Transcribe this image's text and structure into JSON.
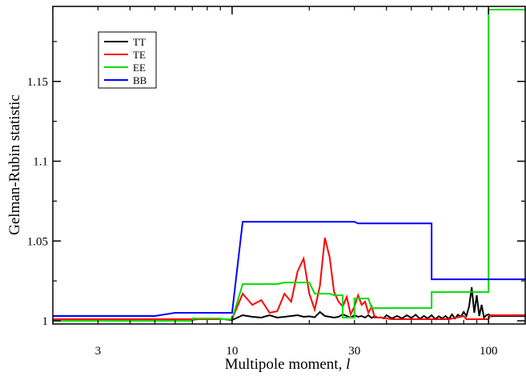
{
  "chart_data": {
    "type": "line",
    "title": "",
    "xlabel": "Multipole moment, ",
    "xlabel_var": "l",
    "ylabel": "Gelman-Rubin statistic",
    "xscale": "log",
    "xlim": [
      2,
      140
    ],
    "ylim": [
      0.998,
      1.197
    ],
    "x_ticks": [
      3,
      10,
      30,
      100
    ],
    "x_tick_labels": [
      "3",
      "10",
      "30",
      "100"
    ],
    "y_ticks": [
      1,
      1.05,
      1.1,
      1.15
    ],
    "y_tick_labels": [
      "1",
      "1.05",
      "1.1",
      "1.15"
    ],
    "grid": false,
    "legend_position": "top-left",
    "series": [
      {
        "name": "TT",
        "color": "#000000",
        "style": "line",
        "points": [
          [
            2,
            1.0005
          ],
          [
            5,
            1.0005
          ],
          [
            7,
            1.0007
          ],
          [
            8,
            1.0015
          ],
          [
            9,
            1.0012
          ],
          [
            10,
            1.0005
          ],
          [
            11,
            1.0035
          ],
          [
            12,
            1.0025
          ],
          [
            13,
            1.002
          ],
          [
            14,
            1.0035
          ],
          [
            15,
            1.002
          ],
          [
            16,
            1.0025
          ],
          [
            17,
            1.003
          ],
          [
            18,
            1.0035
          ],
          [
            19,
            1.0025
          ],
          [
            20,
            1.0028
          ],
          [
            21,
            1.0022
          ],
          [
            22,
            1.0055
          ],
          [
            23,
            1.003
          ],
          [
            24,
            1.0025
          ],
          [
            25,
            1.002
          ],
          [
            26,
            1.0025
          ],
          [
            27,
            1.004
          ],
          [
            28,
            1.003
          ],
          [
            29,
            1.002
          ],
          [
            30,
            1.0035
          ],
          [
            31,
            1.0025
          ],
          [
            32,
            1.003
          ],
          [
            33,
            1.002
          ],
          [
            34,
            1.0035
          ],
          [
            35,
            1.0018
          ],
          [
            36,
            1.0028
          ],
          [
            37,
            1.002
          ],
          [
            38,
            1.0022
          ],
          [
            39,
            1.0015
          ],
          [
            40,
            1.0035
          ],
          [
            42,
            1.0015
          ],
          [
            44,
            1.003
          ],
          [
            46,
            1.0015
          ],
          [
            48,
            1.0035
          ],
          [
            50,
            1.0018
          ],
          [
            52,
            1.0038
          ],
          [
            54,
            1.0012
          ],
          [
            56,
            1.003
          ],
          [
            58,
            1.0015
          ],
          [
            60,
            1.0035
          ],
          [
            62,
            1.001
          ],
          [
            64,
            1.0028
          ],
          [
            66,
            1.0015
          ],
          [
            68,
            1.003
          ],
          [
            70,
            1.001
          ],
          [
            72,
            1.004
          ],
          [
            74,
            1.0015
          ],
          [
            76,
            1.0038
          ],
          [
            78,
            1.0025
          ],
          [
            80,
            1.0055
          ],
          [
            82,
            1.003
          ],
          [
            84,
            1.009
          ],
          [
            86,
            1.021
          ],
          [
            88,
            1.005
          ],
          [
            90,
            1.016
          ],
          [
            92,
            1.003
          ],
          [
            94,
            1.01
          ],
          [
            96,
            1.002
          ],
          [
            98,
            1.0035
          ],
          [
            100,
            1.004
          ],
          [
            102,
            1.003
          ],
          [
            140,
            1.003
          ]
        ]
      },
      {
        "name": "TE",
        "color": "#ff0000",
        "style": "line",
        "points": [
          [
            2,
            1.001
          ],
          [
            9,
            1.001
          ],
          [
            10,
            1.001
          ],
          [
            11,
            1.017
          ],
          [
            12,
            1.01
          ],
          [
            13,
            1.013
          ],
          [
            14,
            1.005
          ],
          [
            15,
            1.006
          ],
          [
            16,
            1.017
          ],
          [
            17,
            1.012
          ],
          [
            18,
            1.031
          ],
          [
            19,
            1.039
          ],
          [
            20,
            1.017
          ],
          [
            21,
            1.007
          ],
          [
            22,
            1.022
          ],
          [
            23,
            1.052
          ],
          [
            24,
            1.04
          ],
          [
            25,
            1.018
          ],
          [
            26,
            1.012
          ],
          [
            27,
            1.009
          ],
          [
            28,
            1.015
          ],
          [
            29,
            1.004
          ],
          [
            30,
            1.009
          ],
          [
            31,
            1.016
          ],
          [
            32,
            1.01
          ],
          [
            33,
            1.012
          ],
          [
            34,
            1.005
          ],
          [
            35,
            1.009
          ],
          [
            36,
            1.002
          ],
          [
            38,
            1.002
          ],
          [
            42,
            1.001
          ],
          [
            60,
            1.001
          ],
          [
            70,
            1.001
          ],
          [
            80,
            1.003
          ],
          [
            82,
            1.001
          ],
          [
            100,
            1.001
          ],
          [
            102,
            1.0035
          ],
          [
            140,
            1.0035
          ]
        ]
      },
      {
        "name": "EE",
        "color": "#00dd00",
        "style": "step",
        "points": [
          [
            2,
            1.0
          ],
          [
            7,
            1.0
          ],
          [
            7,
            1.0015
          ],
          [
            9,
            1.0015
          ],
          [
            9,
            1.001
          ],
          [
            10,
            1.001
          ],
          [
            11,
            1.023
          ],
          [
            15,
            1.023
          ],
          [
            16,
            1.024
          ],
          [
            20,
            1.024
          ],
          [
            21,
            1.017
          ],
          [
            24,
            1.017
          ],
          [
            25,
            1.016
          ],
          [
            27,
            1.016
          ],
          [
            27,
            1.002
          ],
          [
            30,
            1.002
          ],
          [
            30,
            1.014
          ],
          [
            34,
            1.014
          ],
          [
            35,
            1.008
          ],
          [
            60,
            1.008
          ],
          [
            60,
            1.018
          ],
          [
            100,
            1.018
          ],
          [
            100,
            1.195
          ],
          [
            140,
            1.195
          ]
        ]
      },
      {
        "name": "BB",
        "color": "#0000ff",
        "style": "step",
        "points": [
          [
            2,
            1.003
          ],
          [
            5,
            1.003
          ],
          [
            6,
            1.005
          ],
          [
            10,
            1.005
          ],
          [
            11,
            1.062
          ],
          [
            30,
            1.062
          ],
          [
            31,
            1.061
          ],
          [
            60,
            1.061
          ],
          [
            60,
            1.026
          ],
          [
            140,
            1.026
          ]
        ]
      }
    ]
  }
}
